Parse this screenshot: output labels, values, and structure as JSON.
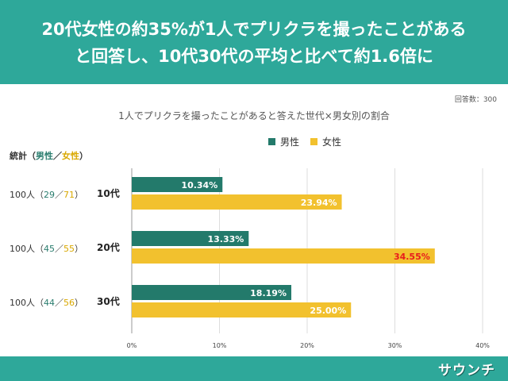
{
  "header": {
    "line1": "20代女性の約35%が1人でプリクラを撮ったことがある",
    "line2": "と回答し、10代30代の平均と比べて約1.6倍に"
  },
  "respondents": "回答数：300",
  "stats": {
    "label": "統計",
    "open": "（",
    "male": "男性",
    "slash": "／",
    "female": "女性",
    "close": "）",
    "rows": [
      {
        "prefix": "100人（",
        "male": "29",
        "slash": "／",
        "female": "71",
        "suffix": "）"
      },
      {
        "prefix": "100人（",
        "male": "45",
        "slash": "／",
        "female": "55",
        "suffix": "）"
      },
      {
        "prefix": "100人（",
        "male": "44",
        "slash": "／",
        "female": "56",
        "suffix": "）"
      }
    ]
  },
  "colors": {
    "male": "#237a6b",
    "female": "#f2c12e",
    "highlight": "#e81c1c",
    "header": "#2ea89a"
  },
  "chart_data": {
    "type": "bar",
    "orientation": "horizontal",
    "title": "1人でプリクラを撮ったことがあると答えた世代×男女別の割合",
    "categories": [
      "10代",
      "20代",
      "30代"
    ],
    "series": [
      {
        "name": "男性",
        "values": [
          10.34,
          13.33,
          18.19
        ],
        "labels": [
          "10.34%",
          "13.33%",
          "18.19%"
        ]
      },
      {
        "name": "女性",
        "values": [
          23.94,
          34.55,
          25.0
        ],
        "labels": [
          "23.94%",
          "34.55%",
          "25.00%"
        ]
      }
    ],
    "xlim": [
      0,
      40
    ],
    "ticks": [
      0,
      10,
      20,
      30,
      40
    ],
    "tick_labels": [
      "0%",
      "10%",
      "20%",
      "30%",
      "40%"
    ],
    "highlight": {
      "series": 1,
      "index": 1
    },
    "grid": true
  },
  "logo": "サウンチ"
}
